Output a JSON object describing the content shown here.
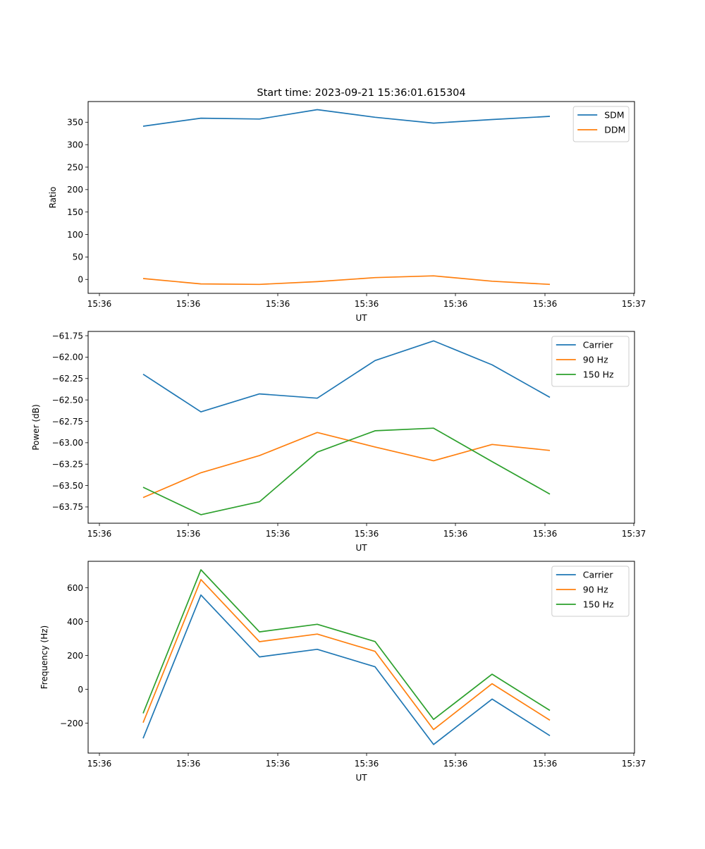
{
  "chart_data": [
    {
      "type": "line",
      "title": "Start time: 2023-09-21 15:36:01.615304",
      "xlabel": "UT",
      "ylabel": "Ratio",
      "x_tick_labels": [
        "15:36",
        "15:36",
        "15:36",
        "15:36",
        "15:36",
        "15:36",
        "15:37"
      ],
      "y_ticks": [
        0,
        50,
        100,
        150,
        200,
        250,
        300,
        350
      ],
      "ylim": [
        -31,
        396
      ],
      "grid": false,
      "legend_position": "top-right",
      "series": [
        {
          "name": "SDM",
          "color": "#1f77b4",
          "values": [
            341,
            359,
            357,
            378,
            361,
            348,
            356,
            363
          ]
        },
        {
          "name": "DDM",
          "color": "#ff7f0e",
          "values": [
            2,
            -10,
            -11,
            -5,
            4,
            8,
            -4,
            -11
          ]
        }
      ]
    },
    {
      "type": "line",
      "title": "",
      "xlabel": "UT",
      "ylabel": "Power (dB)",
      "x_tick_labels": [
        "15:36",
        "15:36",
        "15:36",
        "15:36",
        "15:36",
        "15:36",
        "15:37"
      ],
      "y_ticks": [
        -63.75,
        -63.5,
        -63.25,
        -63.0,
        -62.75,
        -62.5,
        -62.25,
        -62.0,
        -61.75
      ],
      "y_tick_labels": [
        "−63.75",
        "−63.50",
        "−63.25",
        "−63.00",
        "−62.75",
        "−62.50",
        "−62.25",
        "−62.00",
        "−61.75"
      ],
      "ylim": [
        -63.94,
        -61.7
      ],
      "grid": false,
      "legend_position": "top-right",
      "series": [
        {
          "name": "Carrier",
          "color": "#1f77b4",
          "values": [
            -62.2,
            -62.64,
            -62.43,
            -62.48,
            -62.04,
            -61.81,
            -62.09,
            -62.47
          ]
        },
        {
          "name": "90 Hz",
          "color": "#ff7f0e",
          "values": [
            -63.64,
            -63.35,
            -63.15,
            -62.88,
            -63.05,
            -63.21,
            -63.02,
            -63.09
          ]
        },
        {
          "name": "150 Hz",
          "color": "#2ca02c",
          "values": [
            -63.52,
            -63.84,
            -63.69,
            -63.11,
            -62.86,
            -62.83,
            -63.22,
            -63.6
          ]
        }
      ]
    },
    {
      "type": "line",
      "title": "",
      "xlabel": "UT",
      "ylabel": "Frequency (Hz)",
      "x_tick_labels": [
        "15:36",
        "15:36",
        "15:36",
        "15:36",
        "15:36",
        "15:36",
        "15:37"
      ],
      "y_ticks": [
        -200,
        0,
        200,
        400,
        600
      ],
      "y_tick_labels": [
        "−200",
        "0",
        "200",
        "400",
        "600"
      ],
      "ylim": [
        -377,
        756
      ],
      "grid": false,
      "legend_position": "top-right",
      "series": [
        {
          "name": "Carrier",
          "color": "#1f77b4",
          "values": [
            -290,
            557,
            191,
            236,
            133,
            -326,
            -58,
            -274
          ]
        },
        {
          "name": "90 Hz",
          "color": "#ff7f0e",
          "values": [
            -197,
            648,
            281,
            326,
            224,
            -238,
            33,
            -183
          ]
        },
        {
          "name": "150 Hz",
          "color": "#2ca02c",
          "values": [
            -142,
            706,
            339,
            384,
            282,
            -178,
            89,
            -125
          ]
        }
      ]
    }
  ]
}
